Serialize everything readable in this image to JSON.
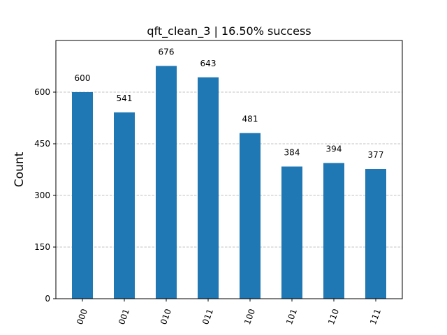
{
  "chart_data": {
    "type": "bar",
    "title": "qft_clean_3 | 16.50% success",
    "xlabel": "",
    "ylabel": "Count",
    "categories": [
      "000",
      "001",
      "010",
      "011",
      "100",
      "101",
      "110",
      "111"
    ],
    "values": [
      600,
      541,
      676,
      643,
      481,
      384,
      394,
      377
    ],
    "ylim": [
      0,
      750
    ],
    "yticks": [
      0,
      150,
      300,
      450,
      600
    ],
    "grid": "horizontal dashed",
    "bar_color": "#1f77b4",
    "grid_color": "#b0b0b0"
  }
}
